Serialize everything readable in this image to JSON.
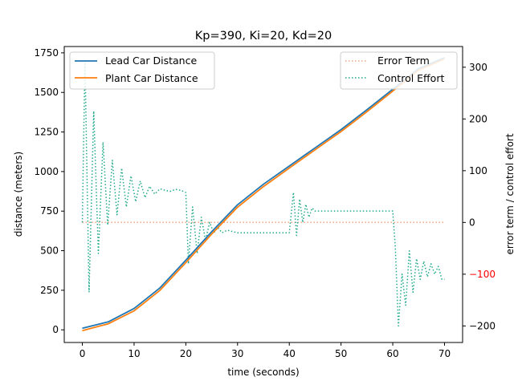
{
  "chart_data": {
    "type": "line",
    "title": "Kp=390, Ki=20, Kd=20",
    "xlabel": "time (seconds)",
    "ylabel_left": "distance (meters)",
    "ylabel_right": "error term / control effort",
    "xlim": [
      -3.5,
      73.5
    ],
    "ylim_left": [
      -80,
      1790
    ],
    "ylim_right": [
      -232,
      340
    ],
    "x_ticks": [
      0,
      10,
      20,
      30,
      40,
      50,
      60,
      70
    ],
    "y_ticks_left": [
      0,
      250,
      500,
      750,
      1000,
      1250,
      1500,
      1750
    ],
    "y_ticks_right": [
      -200,
      -100,
      0,
      100,
      200,
      300
    ],
    "right_tick_colors": {
      "-100": "#ff0000"
    },
    "legend_left": {
      "placement": "upper left",
      "entries": [
        {
          "label": "Lead Car Distance",
          "color": "#1f77b4",
          "style": "solid"
        },
        {
          "label": "Plant Car Distance",
          "color": "#ff7f0e",
          "style": "solid"
        }
      ]
    },
    "legend_right": {
      "placement": "upper right",
      "entries": [
        {
          "label": "Error Term",
          "color": "#f4a582",
          "style": "dotted"
        },
        {
          "label": "Control Effort",
          "color": "#1fa88a",
          "style": "dotted"
        }
      ]
    },
    "series": [
      {
        "name": "Lead Car Distance",
        "axis": "left",
        "color": "#1f77b4",
        "style": "solid",
        "x": [
          0,
          5,
          10,
          15,
          20,
          25,
          30,
          35,
          40,
          45,
          50,
          55,
          60,
          65,
          70
        ],
        "y": [
          10,
          50,
          135,
          265,
          440,
          620,
          790,
          920,
          1035,
          1150,
          1265,
          1390,
          1520,
          1650,
          1720
        ]
      },
      {
        "name": "Plant Car Distance",
        "axis": "left",
        "color": "#ff7f0e",
        "style": "solid",
        "x": [
          0,
          5,
          10,
          15,
          20,
          25,
          30,
          35,
          40,
          45,
          50,
          55,
          60,
          65,
          70
        ],
        "y": [
          -5,
          38,
          120,
          250,
          425,
          605,
          775,
          905,
          1022,
          1138,
          1253,
          1378,
          1508,
          1640,
          1712
        ]
      },
      {
        "name": "Error Term",
        "axis": "right",
        "color": "#f4a582",
        "style": "dotted",
        "x": [
          0,
          70
        ],
        "y": [
          0,
          0
        ]
      },
      {
        "name": "Control Effort",
        "axis": "right",
        "color": "#1fa88a",
        "style": "dotted",
        "x": [
          0,
          0.5,
          1.3,
          2.2,
          3.1,
          4.0,
          4.9,
          5.8,
          6.7,
          7.6,
          8.5,
          9.4,
          10.3,
          11.2,
          12.1,
          13.0,
          14,
          15,
          16,
          17,
          18,
          19,
          20,
          20.5,
          21.3,
          22.2,
          23.0,
          23.8,
          24.6,
          25.4,
          26.2,
          27,
          28,
          30,
          32,
          35,
          38,
          40,
          40.8,
          41.4,
          42.0,
          42.6,
          43.2,
          43.8,
          44.4,
          45.0,
          46,
          48,
          50,
          55,
          60,
          60.5,
          61.1,
          61.8,
          62.5,
          63.2,
          63.9,
          64.6,
          65.3,
          66.0,
          66.7,
          67.4,
          68.1,
          68.8,
          69.5,
          70
        ],
        "y": [
          0,
          315,
          -135,
          215,
          -60,
          155,
          -5,
          120,
          15,
          105,
          30,
          90,
          40,
          80,
          48,
          70,
          55,
          65,
          62,
          60,
          64,
          62,
          58,
          -80,
          30,
          -60,
          10,
          -35,
          0,
          -20,
          -10,
          -20,
          -15,
          -20,
          -20,
          -20,
          -20,
          -20,
          58,
          -25,
          45,
          0,
          35,
          10,
          28,
          22,
          22,
          22,
          22,
          22,
          22,
          -50,
          -200,
          -100,
          -160,
          -55,
          -135,
          -70,
          -110,
          -75,
          -105,
          -80,
          -100,
          -85,
          -110,
          -110
        ]
      }
    ]
  }
}
